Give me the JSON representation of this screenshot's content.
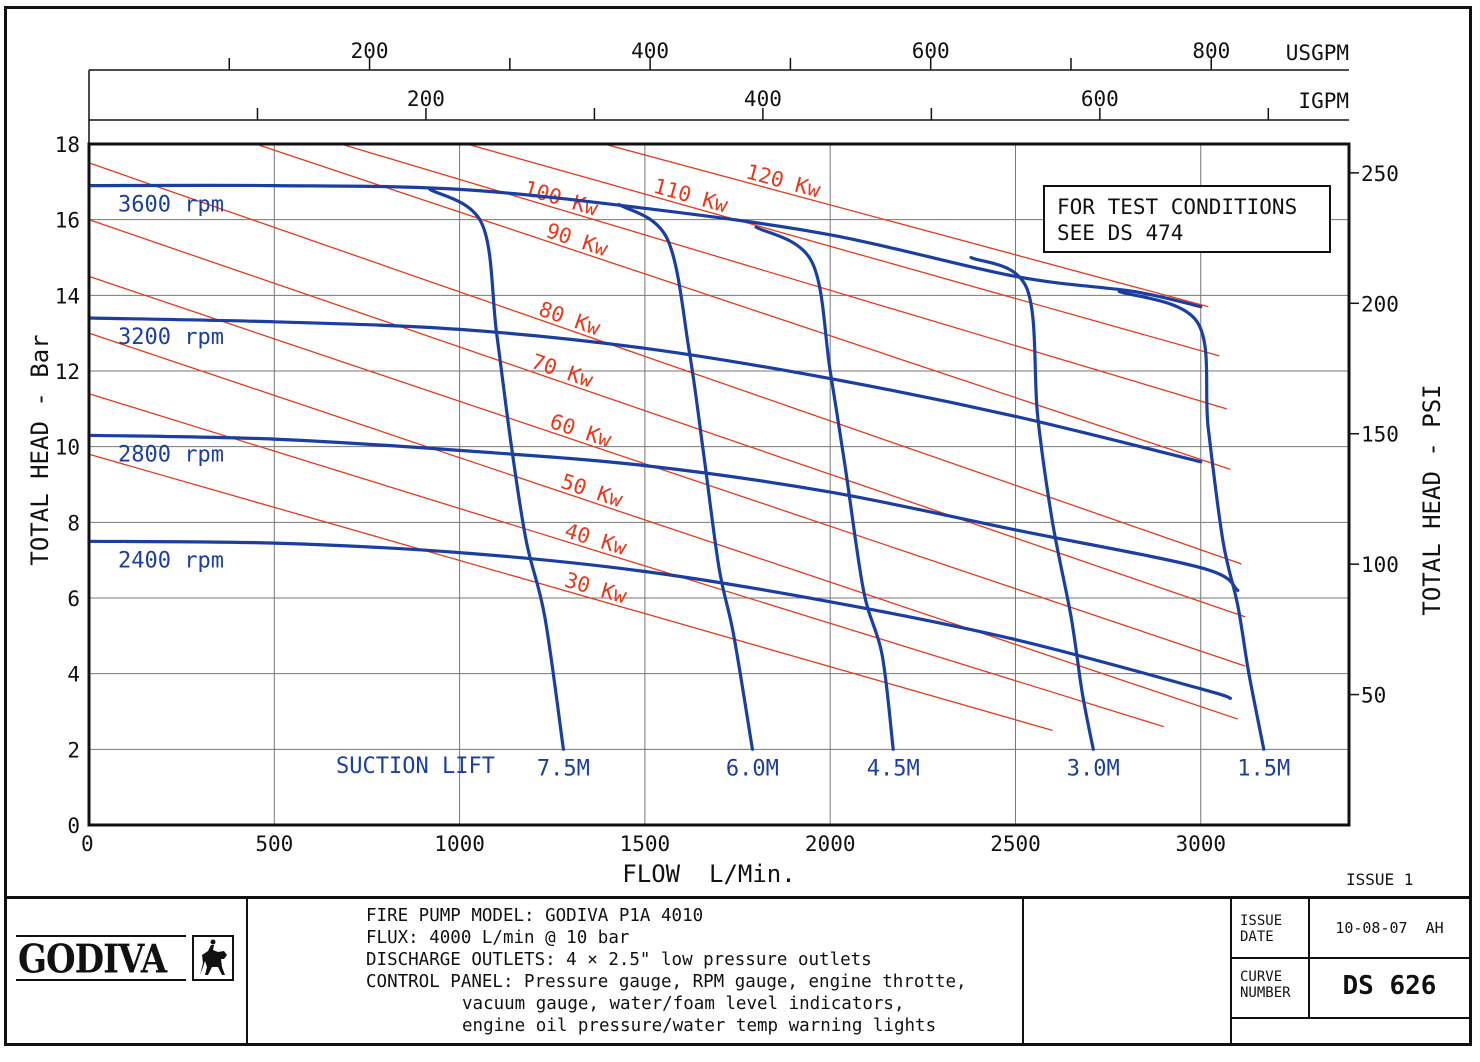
{
  "chart_data": {
    "type": "line",
    "x_axis": {
      "label": "FLOW  L/Min.",
      "min": 0,
      "max": 3400,
      "ticks": [
        0,
        500,
        1000,
        1500,
        2000,
        2500,
        3000
      ]
    },
    "y_axis_left": {
      "label": "TOTAL HEAD - Bar",
      "min": 0,
      "max": 18,
      "ticks": [
        0,
        2,
        4,
        6,
        8,
        10,
        12,
        14,
        16,
        18
      ]
    },
    "y_axis_right": {
      "label": "TOTAL HEAD - PSI",
      "ticks": [
        50,
        100,
        150,
        200,
        250
      ],
      "psi_per_bar": 14.5038
    },
    "top_axes": [
      {
        "unit": "USGPM",
        "ticks": [
          200,
          400,
          600,
          800
        ],
        "lpm_per_unit": 3.78541
      },
      {
        "unit": "IGPM",
        "ticks": [
          200,
          400,
          600
        ],
        "lpm_per_unit": 4.54609
      }
    ],
    "grid": true,
    "speed_curves": [
      {
        "name": "3600 rpm",
        "points": [
          [
            0,
            16.9
          ],
          [
            500,
            16.9
          ],
          [
            1000,
            16.8
          ],
          [
            1500,
            16.3
          ],
          [
            2000,
            15.6
          ],
          [
            2500,
            14.5
          ],
          [
            2820,
            14.1
          ],
          [
            3000,
            13.7
          ]
        ]
      },
      {
        "name": "3200 rpm",
        "points": [
          [
            0,
            13.4
          ],
          [
            500,
            13.3
          ],
          [
            1000,
            13.1
          ],
          [
            1500,
            12.6
          ],
          [
            2000,
            11.8
          ],
          [
            2500,
            10.8
          ],
          [
            3000,
            9.6
          ]
        ]
      },
      {
        "name": "2800 rpm",
        "points": [
          [
            0,
            10.3
          ],
          [
            500,
            10.2
          ],
          [
            1000,
            9.9
          ],
          [
            1500,
            9.5
          ],
          [
            2000,
            8.8
          ],
          [
            2500,
            7.8
          ],
          [
            3000,
            6.8
          ],
          [
            3100,
            6.2
          ]
        ]
      },
      {
        "name": "2400 rpm",
        "points": [
          [
            0,
            7.5
          ],
          [
            500,
            7.45
          ],
          [
            1000,
            7.2
          ],
          [
            1500,
            6.7
          ],
          [
            2000,
            5.9
          ],
          [
            2500,
            4.9
          ],
          [
            3000,
            3.6
          ],
          [
            3080,
            3.35
          ]
        ]
      }
    ],
    "suction_lift_curves": [
      {
        "name": "7.5M",
        "points": [
          [
            920,
            16.8
          ],
          [
            1060,
            15.9
          ],
          [
            1100,
            13.0
          ],
          [
            1140,
            10.0
          ],
          [
            1180,
            7.5
          ],
          [
            1230,
            5.5
          ],
          [
            1280,
            2.0
          ]
        ]
      },
      {
        "name": "6.0M",
        "points": [
          [
            1430,
            16.4
          ],
          [
            1560,
            15.5
          ],
          [
            1620,
            12.5
          ],
          [
            1660,
            9.7
          ],
          [
            1700,
            6.8
          ],
          [
            1740,
            5.0
          ],
          [
            1790,
            2.0
          ]
        ]
      },
      {
        "name": "4.5M",
        "points": [
          [
            1800,
            15.8
          ],
          [
            1950,
            14.9
          ],
          [
            2000,
            12.0
          ],
          [
            2040,
            9.5
          ],
          [
            2090,
            6.2
          ],
          [
            2140,
            4.5
          ],
          [
            2170,
            2.0
          ]
        ]
      },
      {
        "name": "3.0M",
        "points": [
          [
            2380,
            15.0
          ],
          [
            2530,
            14.2
          ],
          [
            2560,
            10.8
          ],
          [
            2600,
            8.0
          ],
          [
            2650,
            5.5
          ],
          [
            2680,
            3.5
          ],
          [
            2710,
            2.0
          ]
        ]
      },
      {
        "name": "1.5M",
        "points": [
          [
            2780,
            14.1
          ],
          [
            2990,
            13.3
          ],
          [
            3020,
            10.5
          ],
          [
            3060,
            7.5
          ],
          [
            3100,
            5.8
          ],
          [
            3130,
            4.0
          ],
          [
            3170,
            2.0
          ]
        ]
      }
    ],
    "suction_lift_label": "SUCTION LIFT",
    "power_lines": [
      {
        "name": "30 Kw",
        "points": [
          [
            0,
            9.8
          ],
          [
            2600,
            2.5
          ]
        ]
      },
      {
        "name": "40 Kw",
        "points": [
          [
            0,
            11.4
          ],
          [
            2900,
            2.6
          ]
        ]
      },
      {
        "name": "50 Kw",
        "points": [
          [
            0,
            13.0
          ],
          [
            3100,
            2.8
          ]
        ]
      },
      {
        "name": "60 Kw",
        "points": [
          [
            0,
            14.5
          ],
          [
            3120,
            4.2
          ]
        ]
      },
      {
        "name": "70 Kw",
        "points": [
          [
            0,
            16.0
          ],
          [
            3120,
            5.5
          ]
        ]
      },
      {
        "name": "80 Kw",
        "points": [
          [
            0,
            17.5
          ],
          [
            3110,
            6.9
          ]
        ]
      },
      {
        "name": "90 Kw",
        "points": [
          [
            450,
            18.0
          ],
          [
            3080,
            9.4
          ]
        ]
      },
      {
        "name": "100 Kw",
        "points": [
          [
            680,
            18.0
          ],
          [
            3070,
            11.0
          ]
        ]
      },
      {
        "name": "110 Kw",
        "points": [
          [
            1020,
            18.0
          ],
          [
            3050,
            12.4
          ]
        ]
      },
      {
        "name": "120 Kw",
        "points": [
          [
            1390,
            18.0
          ],
          [
            3020,
            13.7
          ]
        ]
      }
    ],
    "note": [
      "FOR TEST CONDITIONS",
      "SEE DS 474"
    ],
    "issue": "ISSUE 1"
  },
  "title_block": {
    "logo_text": "GODIVA",
    "spec_lines": [
      "FIRE PUMP MODEL: GODIVA P1A 4010",
      "FLUX: 4000 L/min @ 10 bar",
      "DISCHARGE OUTLETS: 4 × 2.5\" low pressure outlets",
      "CONTROL PANEL: Pressure gauge, RPM gauge, engine throtte,",
      "vacuum gauge, water/foam level indicators,",
      "engine oil pressure/water temp warning lights"
    ],
    "issue_date_label": [
      "ISSUE",
      "DATE"
    ],
    "issue_date_value": "10-08-07  AH",
    "curve_number_label": [
      "CURVE",
      "NUMBER"
    ],
    "curve_number_value": "DS 626"
  },
  "colors": {
    "speed_curve": "#1a3fa0",
    "power_line": "#e8391c",
    "grid": "#777777",
    "ink": "#111111"
  }
}
